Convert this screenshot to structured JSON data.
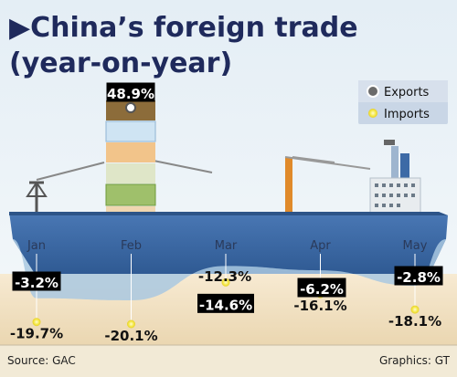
{
  "chart_data": {
    "type": "line",
    "title": "▶China’s foreign trade",
    "subtitle": "(year-on-year)",
    "categories": [
      "Jan",
      "Feb",
      "Mar",
      "Apr",
      "May"
    ],
    "series": [
      {
        "name": "Exports",
        "values": [
          -3.2,
          48.9,
          -12.3,
          -6.2,
          -2.8
        ],
        "color": "#8a8a8a"
      },
      {
        "name": "Imports",
        "values": [
          -19.7,
          -20.1,
          -14.6,
          -16.1,
          -18.1
        ],
        "color": "#f0e24a"
      }
    ],
    "labels": {
      "exports": [
        "-3.2%",
        "48.9%",
        "-12.3%",
        "-6.2%",
        "-2.8%"
      ],
      "imports": [
        "-19.7%",
        "-20.1%",
        "-14.6%",
        "-16.1%",
        "-18.1%"
      ]
    },
    "legend_position": "top-right",
    "grid": false
  },
  "footer": {
    "source": "Source:  GAC",
    "credit": "Graphics:  GT"
  },
  "colors": {
    "background_top": "#e9f3f8",
    "hull": "#3d6aa6",
    "water": "#a8c9e2",
    "accent_title": "#1f2a5c",
    "sand": "#f3e4c8",
    "legend_bg": "#c9d6e6"
  }
}
